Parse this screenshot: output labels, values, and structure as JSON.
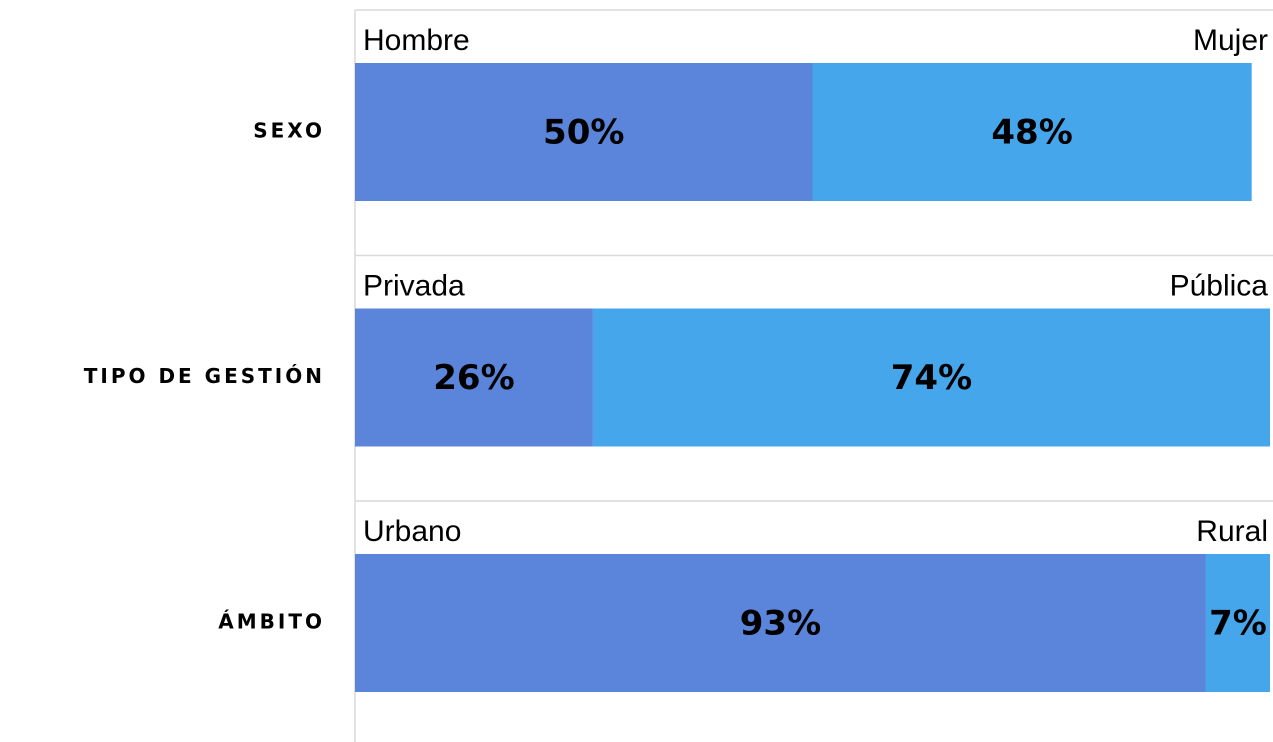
{
  "chart_data": {
    "type": "bar",
    "orientation": "horizontal",
    "stacked": true,
    "xlim": [
      0,
      100
    ],
    "categories": [
      "SEXO",
      "TIPO DE GESTIÓN",
      "ÁMBITO"
    ],
    "series": [
      {
        "color": "#5b84db",
        "names": [
          "Hombre",
          "Privada",
          "Urbano"
        ],
        "values": [
          50,
          26,
          93
        ],
        "value_labels": [
          "50%",
          "26%",
          "93%"
        ]
      },
      {
        "color": "#46a6ec",
        "names": [
          "Mujer",
          "Pública",
          "Rural"
        ],
        "values": [
          48,
          74,
          7
        ],
        "value_labels": [
          "48%",
          "74%",
          "7%"
        ]
      }
    ]
  }
}
